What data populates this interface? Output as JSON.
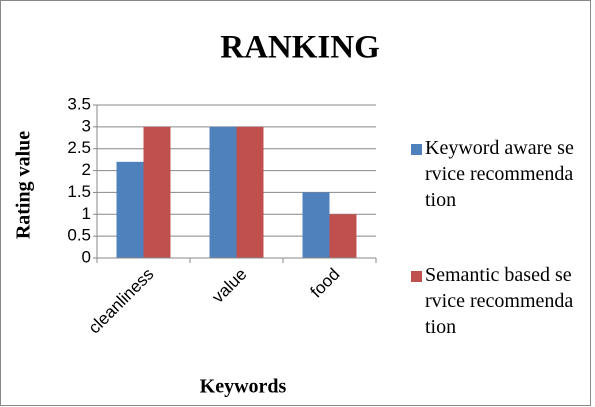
{
  "chart_data": {
    "type": "bar",
    "title": "RANKING",
    "x_label": "Keywords",
    "y_label": "Rating value",
    "categories": [
      "cleanliness",
      "value",
      "food"
    ],
    "series": [
      {
        "name": "Keyword aware service recommendation",
        "color": "#4f81bd",
        "values": [
          2.2,
          3,
          1.5
        ]
      },
      {
        "name": "Semantic based service recommendation",
        "color": "#c0504d",
        "values": [
          3,
          3,
          1
        ]
      }
    ],
    "ylim": [
      0,
      3.5
    ],
    "yticks": [
      0,
      0.5,
      1,
      1.5,
      2,
      2.5,
      3,
      3.5
    ],
    "grid": true,
    "legend": "right"
  }
}
